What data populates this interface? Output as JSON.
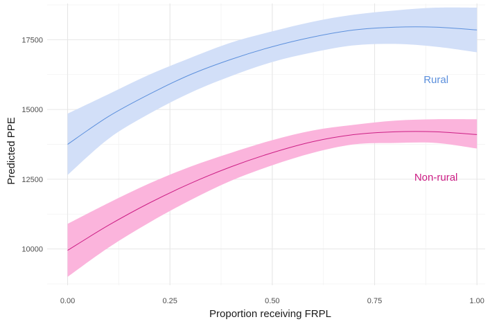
{
  "chart_data": {
    "type": "line",
    "xlabel": "Proportion receiving FRPL",
    "ylabel": "Predicted PPE",
    "xlim": [
      -0.05,
      1.02
    ],
    "ylim": [
      8700,
      18800
    ],
    "x_ticks": [
      0.0,
      0.25,
      0.5,
      0.75,
      1.0
    ],
    "x_tick_labels": [
      "0.00",
      "0.25",
      "0.50",
      "0.75",
      "1.00"
    ],
    "y_ticks": [
      10000,
      12500,
      15000,
      17500
    ],
    "y_tick_labels": [
      "10000",
      "12500",
      "15000",
      "17500"
    ],
    "grid": true,
    "legend": "none",
    "x": [
      0.0,
      0.1,
      0.2,
      0.3,
      0.4,
      0.5,
      0.6,
      0.7,
      0.8,
      0.9,
      1.0
    ],
    "series": [
      {
        "name": "Rural",
        "color": "#5b8fdc",
        "band_color": "#d2dff8",
        "label_at": [
          0.9,
          15950
        ],
        "values": [
          13750,
          14750,
          15550,
          16250,
          16800,
          17250,
          17600,
          17850,
          17950,
          17950,
          17850
        ],
        "lower": [
          12650,
          13950,
          14850,
          15600,
          16200,
          16700,
          17050,
          17300,
          17350,
          17250,
          17050
        ],
        "upper": [
          14850,
          15550,
          16250,
          16850,
          17400,
          17800,
          18150,
          18400,
          18550,
          18650,
          18650
        ]
      },
      {
        "name": "Non-rural",
        "color": "#cc1d84",
        "band_color": "#fbb4dc",
        "label_at": [
          0.9,
          12450
        ],
        "values": [
          9950,
          10850,
          11650,
          12350,
          12950,
          13450,
          13850,
          14100,
          14200,
          14200,
          14100
        ],
        "lower": [
          9000,
          10050,
          10950,
          11750,
          12450,
          13000,
          13450,
          13750,
          13800,
          13800,
          13600
        ],
        "upper": [
          10900,
          11650,
          12350,
          12950,
          13450,
          13900,
          14250,
          14450,
          14600,
          14650,
          14650
        ]
      }
    ]
  }
}
